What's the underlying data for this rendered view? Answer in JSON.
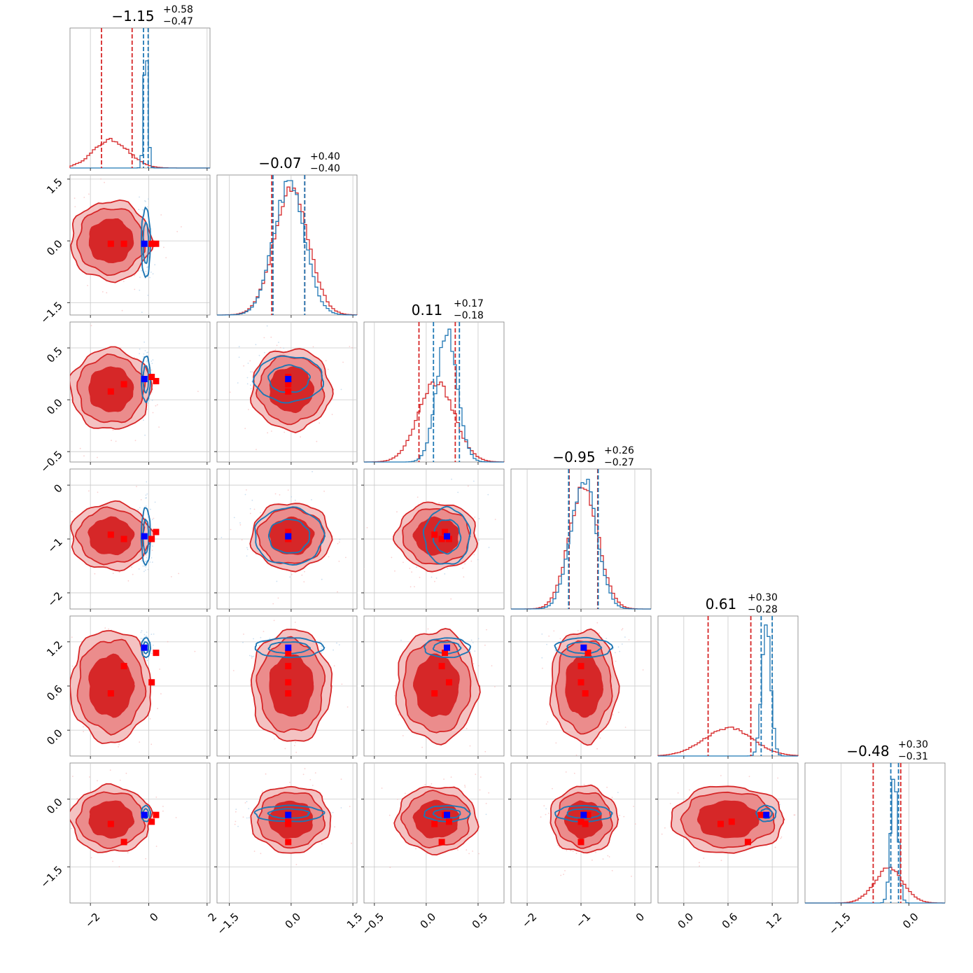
{
  "chart_data": {
    "type": "corner",
    "dimensions": 6,
    "titles": [
      {
        "main": "−1.15",
        "plus": "+0.58",
        "minus": "−0.47"
      },
      {
        "main": "−0.07",
        "plus": "+0.40",
        "minus": "−0.40"
      },
      {
        "main": "0.11",
        "plus": "+0.17",
        "minus": "−0.18"
      },
      {
        "main": "−0.95",
        "plus": "+0.26",
        "minus": "−0.27"
      },
      {
        "main": "0.61",
        "plus": "+0.30",
        "minus": "−0.28"
      },
      {
        "main": "−0.48",
        "plus": "+0.30",
        "minus": "−0.31"
      }
    ],
    "ranges": [
      [
        -2.7,
        2.1
      ],
      [
        -1.8,
        1.6
      ],
      [
        -0.6,
        0.75
      ],
      [
        -2.3,
        0.3
      ],
      [
        -0.35,
        1.55
      ],
      [
        -2.3,
        0.8
      ]
    ],
    "ticks": [
      {
        "values": [
          -2,
          0,
          2
        ],
        "labels": [
          "−2",
          "0",
          "2"
        ]
      },
      {
        "values": [
          -1.5,
          0.0,
          1.5
        ],
        "labels": [
          "−1.5",
          "0.0",
          "1.5"
        ]
      },
      {
        "values": [
          -0.5,
          0.0,
          0.5
        ],
        "labels": [
          "−0.5",
          "0.0",
          "0.5"
        ]
      },
      {
        "values": [
          -2,
          -1,
          0
        ],
        "labels": [
          "−2",
          "−1",
          "0"
        ]
      },
      {
        "values": [
          0.0,
          0.6,
          1.2
        ],
        "labels": [
          "0.0",
          "0.6",
          "1.2"
        ]
      },
      {
        "values": [
          -1.5,
          0.0
        ],
        "labels": [
          "−1.5",
          "0.0"
        ]
      }
    ],
    "colors": {
      "red": "#d62728",
      "blue": "#1f77b4",
      "red_fill_outer": "#f4c2c2",
      "red_fill_mid": "#eb8c8c",
      "red_fill_inner": "#d62728",
      "truth_blue": "#0000ff",
      "truth_red": "#ff0000"
    },
    "series": [
      {
        "name": "",
        "color": "#d62728",
        "mean": [
          -1.3,
          0.0,
          0.1,
          -0.95,
          0.6,
          -0.45
        ],
        "sd": [
          0.6,
          0.42,
          0.17,
          0.27,
          0.33,
          0.32
        ],
        "quantiles_marked": [
          [
            -1.62,
            -0.57
          ],
          [
            -0.47,
            0.33
          ],
          [
            -0.07,
            0.28
          ],
          [
            -1.22,
            -0.69
          ],
          [
            0.33,
            0.91
          ],
          [
            -0.79,
            -0.18
          ]
        ]
      },
      {
        "name": "",
        "color": "#1f77b4",
        "mean": [
          -0.1,
          -0.05,
          0.2,
          -0.95,
          1.12,
          -0.32
        ],
        "sd": [
          0.07,
          0.38,
          0.1,
          0.24,
          0.06,
          0.08
        ],
        "quantiles_marked": [
          [
            -0.18,
            -0.02
          ],
          [
            -0.44,
            0.33
          ],
          [
            0.07,
            0.32
          ],
          [
            -1.23,
            -0.68
          ],
          [
            1.05,
            1.2
          ],
          [
            -0.4,
            -0.23
          ]
        ]
      }
    ],
    "truth_blue": [
      -0.15,
      -0.07,
      0.2,
      -0.95,
      1.12,
      -0.35
    ],
    "truth_red": [
      [
        -1.3,
        -0.07,
        0.08,
        -0.92,
        0.5,
        -0.55
      ],
      [
        -0.85,
        -0.07,
        0.15,
        -1.0,
        0.87,
        -0.95
      ],
      [
        0.1,
        -0.07,
        0.22,
        -1.0,
        0.65,
        -0.5
      ],
      [
        0.25,
        -0.07,
        0.18,
        -0.87,
        1.05,
        -0.35
      ]
    ]
  }
}
